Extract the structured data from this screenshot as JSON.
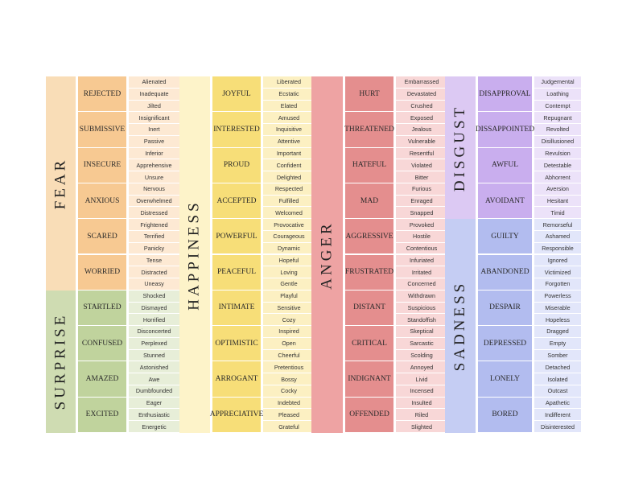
{
  "groups": [
    {
      "sections": [
        {
          "emotion": "FEAR",
          "colors": {
            "core": "#f9ddb7",
            "sub": "#f7c992",
            "leaf": "#fde9d3"
          },
          "items": [
            {
              "name": "REJECTED",
              "words": [
                "Alienated",
                "Inadequate",
                "Jilted"
              ]
            },
            {
              "name": "SUBMISSIVE",
              "words": [
                "Insignificant",
                "Inert",
                "Passive"
              ]
            },
            {
              "name": "INSECURE",
              "words": [
                "Inferior",
                "Apprehensive",
                "Unsure"
              ]
            },
            {
              "name": "ANXIOUS",
              "words": [
                "Nervous",
                "Overwhelmed",
                "Distressed"
              ]
            },
            {
              "name": "SCARED",
              "words": [
                "Frightened",
                "Terrified",
                "Panicky"
              ]
            },
            {
              "name": "WORRIED",
              "words": [
                "Tense",
                "Distracted",
                "Uneasy"
              ]
            }
          ]
        },
        {
          "emotion": "SURPRISE",
          "colors": {
            "core": "#cfdcb2",
            "sub": "#c0d39d",
            "leaf": "#e7eed8"
          },
          "items": [
            {
              "name": "STARTLED",
              "words": [
                "Shocked",
                "Dismayed",
                "Horrified"
              ]
            },
            {
              "name": "CONFUSED",
              "words": [
                "Disconcerted",
                "Perplexed",
                "Stunned"
              ]
            },
            {
              "name": "AMAZED",
              "words": [
                "Astonished",
                "Awe",
                "Dumbfounded"
              ]
            },
            {
              "name": "EXCITED",
              "words": [
                "Eager",
                "Enthusiastic",
                "Energetic"
              ]
            }
          ]
        }
      ]
    },
    {
      "sections": [
        {
          "emotion": "HAPPINESS",
          "colors": {
            "core": "#fdf3c9",
            "sub": "#f7de78",
            "leaf": "#fcf0c2"
          },
          "items": [
            {
              "name": "JOYFUL",
              "words": [
                "Liberated",
                "Ecstatic",
                "Elated"
              ]
            },
            {
              "name": "INTERESTED",
              "words": [
                "Amused",
                "Inquisitive",
                "Attentive"
              ]
            },
            {
              "name": "PROUD",
              "words": [
                "Important",
                "Confident",
                "Delighted"
              ]
            },
            {
              "name": "ACCEPTED",
              "words": [
                "Respected",
                "Fulfilled",
                "Welcomed"
              ]
            },
            {
              "name": "POWERFUL",
              "words": [
                "Provocative",
                "Courageous",
                "Dynamic"
              ]
            },
            {
              "name": "PEACEFUL",
              "words": [
                "Hopeful",
                "Loving",
                "Gentle"
              ]
            },
            {
              "name": "INTIMATE",
              "words": [
                "Playful",
                "Sensitive",
                "Cozy"
              ]
            },
            {
              "name": "OPTIMISTIC",
              "words": [
                "Inspired",
                "Open",
                "Cheerful"
              ]
            },
            {
              "name": "ARROGANT",
              "words": [
                "Pretentious",
                "Bossy",
                "Cocky"
              ]
            },
            {
              "name": "APPRECIATIVE",
              "words": [
                "Indebted",
                "Pleased",
                "Grateful"
              ]
            }
          ]
        }
      ]
    },
    {
      "sections": [
        {
          "emotion": "ANGER",
          "colors": {
            "core": "#eea3a3",
            "sub": "#e48e8e",
            "leaf": "#f8d7d7"
          },
          "items": [
            {
              "name": "HURT",
              "words": [
                "Embarrassed",
                "Devastated",
                "Crushed"
              ]
            },
            {
              "name": "THREATENED",
              "words": [
                "Exposed",
                "Jealous",
                "Vulnerable"
              ]
            },
            {
              "name": "HATEFUL",
              "words": [
                "Resentful",
                "Violated",
                "Bitter"
              ]
            },
            {
              "name": "MAD",
              "words": [
                "Furious",
                "Enraged",
                "Snapped"
              ]
            },
            {
              "name": "AGGRESSIVE",
              "words": [
                "Provoked",
                "Hostile",
                "Contentious"
              ]
            },
            {
              "name": "FRUSTRATED",
              "words": [
                "Infuriated",
                "Irritated",
                "Concerned"
              ]
            },
            {
              "name": "DISTANT",
              "words": [
                "Withdrawn",
                "Suspicious",
                "Standoffish"
              ]
            },
            {
              "name": "CRITICAL",
              "words": [
                "Skeptical",
                "Sarcastic",
                "Scolding"
              ]
            },
            {
              "name": "INDIGNANT",
              "words": [
                "Annoyed",
                "Livid",
                "Incensed"
              ]
            },
            {
              "name": "OFFENDED",
              "words": [
                "Insulted",
                "Riled",
                "Slighted"
              ]
            }
          ]
        }
      ]
    },
    {
      "sections": [
        {
          "emotion": "DISGUST",
          "colors": {
            "core": "#dcc9f3",
            "sub": "#c9aeee",
            "leaf": "#ece2f9"
          },
          "items": [
            {
              "name": "DISAPPROVAL",
              "words": [
                "Judgemental",
                "Loathing",
                "Contempt"
              ]
            },
            {
              "name": "DISSAPPOINTED",
              "words": [
                "Repugnant",
                "Revolted",
                "Disillusioned"
              ]
            },
            {
              "name": "AWFUL",
              "words": [
                "Revulsion",
                "Detestable",
                "Abhorrent"
              ]
            },
            {
              "name": "AVOIDANT",
              "words": [
                "Aversion",
                "Hesitant",
                "Timid"
              ]
            }
          ]
        },
        {
          "emotion": "SADNESS",
          "colors": {
            "core": "#c5cdf3",
            "sub": "#b2bcef",
            "leaf": "#e2e6fa"
          },
          "items": [
            {
              "name": "GUILTY",
              "words": [
                "Remorseful",
                "Ashamed",
                "Responsible"
              ]
            },
            {
              "name": "ABANDONED",
              "words": [
                "Ignored",
                "Victimized",
                "Forgotten"
              ]
            },
            {
              "name": "DESPAIR",
              "words": [
                "Powerless",
                "Miserable",
                "Hopeless"
              ]
            },
            {
              "name": "DEPRESSED",
              "words": [
                "Dragged",
                "Empty",
                "Somber"
              ]
            },
            {
              "name": "LONELY",
              "words": [
                "Detached",
                "Isolated",
                "Outcast"
              ]
            },
            {
              "name": "BORED",
              "words": [
                "Apathetic",
                "Indifferent",
                "Disinterested"
              ]
            }
          ]
        }
      ]
    }
  ]
}
